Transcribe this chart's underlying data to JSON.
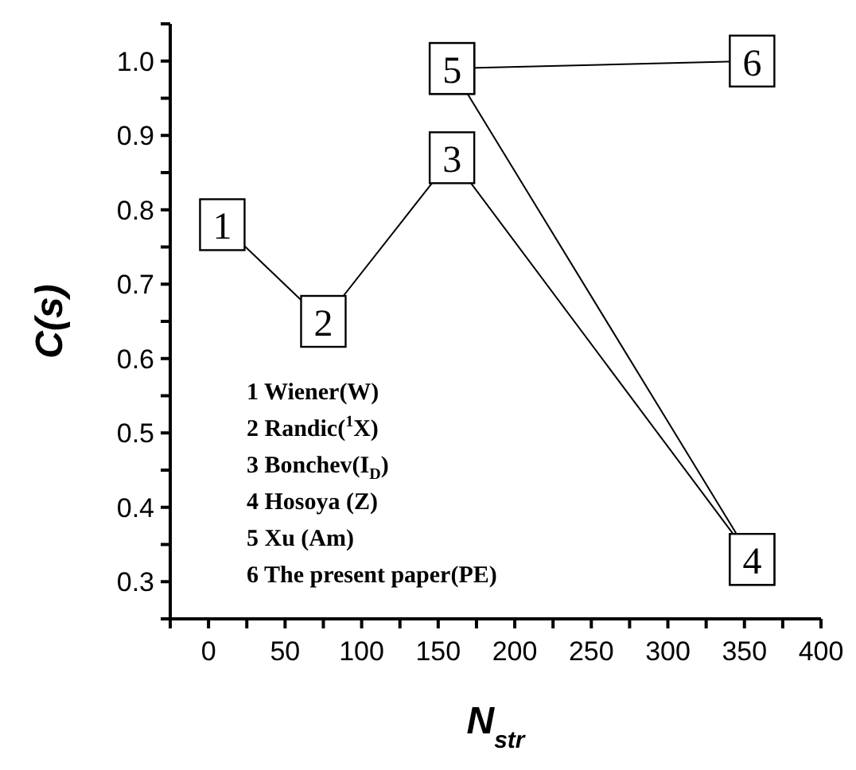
{
  "chart_data": {
    "type": "line",
    "xlabel": "N$_{str}$",
    "ylabel": "C(s)",
    "xlim": [
      -25,
      400
    ],
    "xticks": [
      {
        "value": -25,
        "label": null
      },
      0,
      {
        "value": 25,
        "label": null
      },
      50,
      {
        "value": 75,
        "label": null
      },
      100,
      {
        "value": 125,
        "label": null
      },
      150,
      {
        "value": 175,
        "label": null
      },
      200,
      {
        "value": 225,
        "label": null
      },
      250,
      {
        "value": 275,
        "label": null
      },
      300,
      {
        "value": 325,
        "label": null
      },
      350,
      {
        "value": 375,
        "label": null
      },
      400
    ],
    "ylim": [
      0.25,
      1.05
    ],
    "yticks": [
      {
        "value": 0.25,
        "label": null
      },
      0.3,
      {
        "value": 0.35,
        "label": null
      },
      0.4,
      {
        "value": 0.45,
        "label": null
      },
      0.5,
      {
        "value": 0.55,
        "label": null
      },
      0.6,
      {
        "value": 0.65,
        "label": null
      },
      0.7,
      {
        "value": 0.75,
        "label": null
      },
      0.8,
      {
        "value": 0.85,
        "label": null
      },
      0.9,
      {
        "value": 0.95,
        "label": null
      },
      {
        "value": 1,
        "label": "1.0"
      },
      {
        "value": 1.05,
        "label": null
      }
    ],
    "grid": false,
    "legend": false,
    "marker": "square",
    "line_style": "solid",
    "series": [
      {
        "color": "#000000",
        "x": [
          9,
          75,
          159,
          355
        ],
        "values": [
          0.78,
          0.65,
          0.87,
          0.33
        ]
      },
      {
        "color": "#000000",
        "x": [
          159,
          355
        ],
        "values": [
          0.99,
          0.33
        ]
      },
      {
        "color": "#000000",
        "x": [
          159,
          355
        ],
        "values": [
          0.99,
          1.0
        ]
      }
    ],
    "annotations": [
      {
        "text": "1",
        "x": 9,
        "y": 0.78
      },
      {
        "text": "2",
        "x": 75,
        "y": 0.65
      },
      {
        "text": "3",
        "x": 159,
        "y": 0.87
      },
      {
        "text": "4",
        "x": 355,
        "y": 0.33
      },
      {
        "text": "5",
        "x": 159,
        "y": 0.99
      },
      {
        "text": "6",
        "x": 355,
        "y": 1.0
      },
      "1 Wiener(W)",
      "2 Randic($^{1}$X)",
      "3 Bonchev(I$_{D}$)",
      "4 Hosoya (Z)",
      "5 Xu (Am)",
      "6 The present paper(PE)"
    ]
  }
}
